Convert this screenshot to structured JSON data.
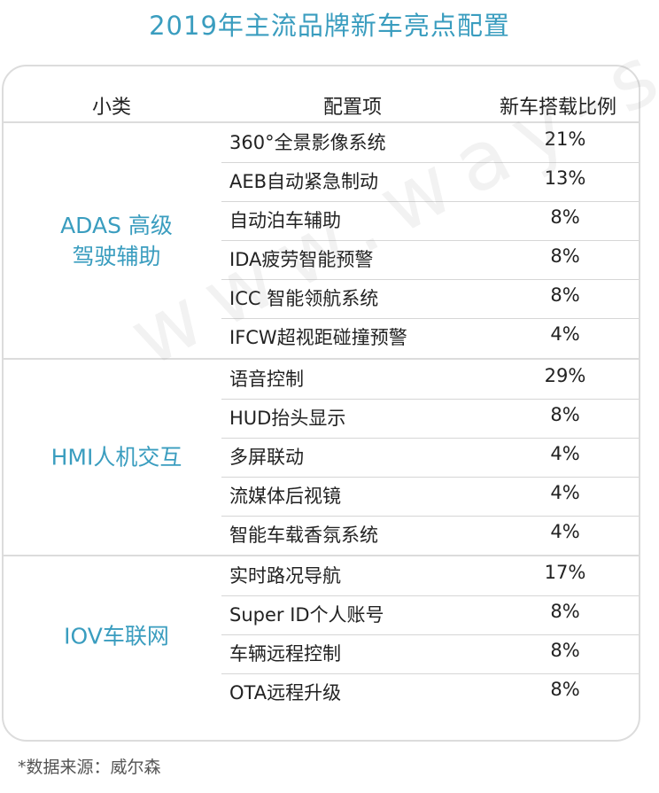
{
  "title": "2019年主流品牌新车亮点配置",
  "header": {
    "category": "小类",
    "item": "配置项",
    "ratio": "新车搭载比例"
  },
  "groups": [
    {
      "category": "ADAS 高级\n驾驶辅助",
      "rows": [
        {
          "item": "360°全景影像系统",
          "pct": "21%"
        },
        {
          "item": "AEB自动紧急制动",
          "pct": "13%"
        },
        {
          "item": "自动泊车辅助",
          "pct": "8%"
        },
        {
          "item": "IDA疲劳智能预警",
          "pct": "8%"
        },
        {
          "item": "ICC 智能领航系统",
          "pct": "8%"
        },
        {
          "item": "IFCW超视距碰撞预警",
          "pct": "4%"
        }
      ]
    },
    {
      "category": "HMI人机交互",
      "rows": [
        {
          "item": "语音控制",
          "pct": "29%"
        },
        {
          "item": "HUD抬头显示",
          "pct": "8%"
        },
        {
          "item": "多屏联动",
          "pct": "4%"
        },
        {
          "item": "流媒体后视镜",
          "pct": "4%"
        },
        {
          "item": "智能车载香氛系统",
          "pct": "4%"
        }
      ]
    },
    {
      "category": "IOV车联网",
      "rows": [
        {
          "item": "实时路况导航",
          "pct": "17%"
        },
        {
          "item": "Super ID个人账号",
          "pct": "8%"
        },
        {
          "item": "车辆远程控制",
          "pct": "8%"
        },
        {
          "item": "OTA远程升级",
          "pct": "8%"
        }
      ]
    }
  ],
  "watermark": "www.way-s.cn",
  "source": "*数据来源：威尔森"
}
